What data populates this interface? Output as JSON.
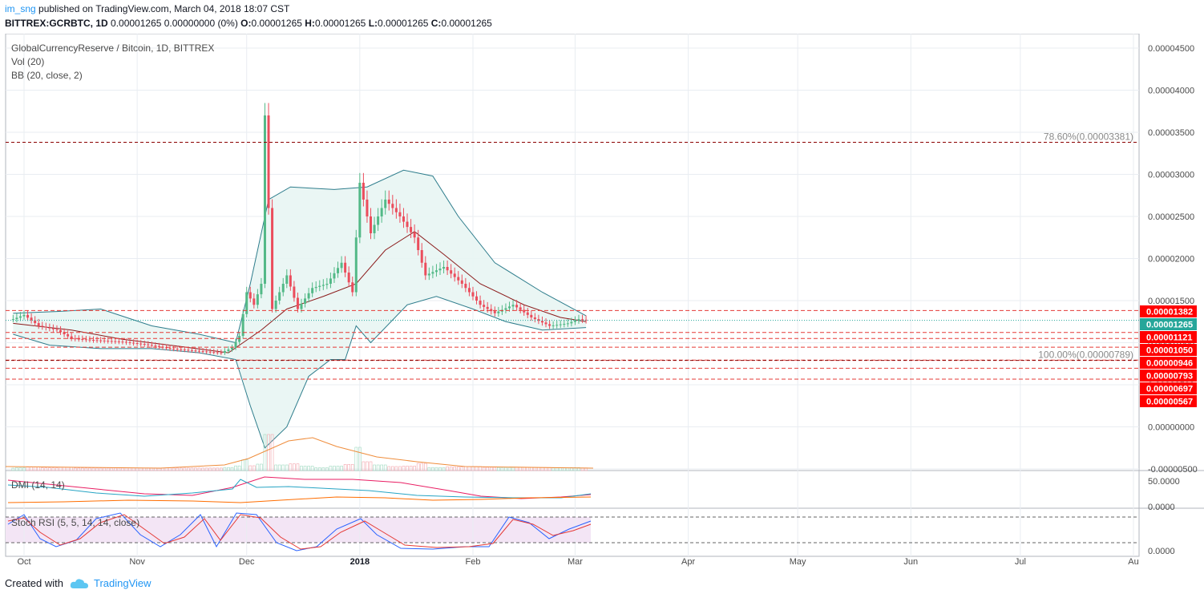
{
  "header": {
    "user": "im_sng",
    "published": " published on TradingView.com, March 04, 2018 18:07 CST",
    "symbol": "BITTREX:GCRBTC, 1D",
    "change": "0.00001265 0.00000000 (0%)",
    "o_label": "O:",
    "o_val": "0.00001265",
    "h_label": "H:",
    "h_val": "0.00001265",
    "l_label": "L:",
    "l_val": "0.00001265",
    "c_label": "C:",
    "c_val": "0.00001265"
  },
  "legend": {
    "main": "GlobalCurrencyReserve / Bitcoin, 1D, BITTREX",
    "vol": "Vol (20)",
    "bb": "BB (20, close, 2)",
    "dmi": "DMI (14, 14)",
    "stoch": "Stoch RSI (5, 5, 14, 14, close)"
  },
  "footer": {
    "created": "Created with",
    "brand": "TradingView"
  },
  "colors": {
    "up": "#53b987",
    "down": "#eb4d5c",
    "bb_band": "#2e7d8c",
    "bb_basis": "#8b1a1a",
    "bb_fill": "#e8f5f3",
    "level_line": "#e53935",
    "level_bg": "#ff0000",
    "current_bg": "#26a69a",
    "grid": "#e9edf2",
    "axis_text": "#4a4a4a",
    "vol_ma": "#ef8d3c",
    "dmi_plus": "#26a4c4",
    "dmi_minus": "#e91e63",
    "adx": "#ff6d00",
    "stoch_k": "#2962ff",
    "stoch_d": "#e53935",
    "stoch_bg": "#f3e5f5"
  },
  "chart_data": {
    "type": "candlestick",
    "y_axis_ticks": [
      "0.00004500",
      "0.00004000",
      "0.00003500",
      "0.00003000",
      "0.00002500",
      "0.00002000",
      "0.00001500",
      "0.00001000",
      "0.00000500",
      "0.00000000",
      "-0.00000500"
    ],
    "y_axis_values": [
      4.5e-05,
      4e-05,
      3.5e-05,
      3e-05,
      2.5e-05,
      2e-05,
      1.5e-05,
      1e-05,
      5e-06,
      0,
      -5e-06
    ],
    "x_axis_labels": [
      "Oct",
      "Nov",
      "Dec",
      "2018",
      "Feb",
      "Mar",
      "Apr",
      "May",
      "Jun",
      "Jul",
      "Au"
    ],
    "x_axis_dates": [
      "2017-10-01",
      "2017-11-01",
      "2017-12-01",
      "2018-01-01",
      "2018-02-01",
      "2018-03-01",
      "2018-04-01",
      "2018-05-01",
      "2018-06-01",
      "2018-07-01",
      "2018-08-01"
    ],
    "fib_levels": [
      {
        "label": "78.60%(0.00003381)",
        "value": 3.381e-05
      },
      {
        "label": "100.00%(0.00000789)",
        "value": 7.89e-06
      }
    ],
    "price_levels": [
      {
        "label": "0.00001382",
        "value": 1.382e-05
      },
      {
        "label": "0.00001121",
        "value": 1.121e-05
      },
      {
        "label": "0.00001050",
        "value": 1.05e-05
      },
      {
        "label": "0.00000946",
        "value": 9.46e-06
      },
      {
        "label": "0.00000793",
        "value": 7.93e-06
      },
      {
        "label": "0.00000697",
        "value": 6.97e-06
      },
      {
        "label": "0.00000567",
        "value": 5.67e-06
      }
    ],
    "current_price": {
      "label": "0.00001265",
      "value": 1.265e-05
    },
    "price_path": [
      [
        "2017-09-28",
        1.28e-05
      ],
      [
        "2017-10-01",
        1.33e-05
      ],
      [
        "2017-10-05",
        1.2e-05
      ],
      [
        "2017-10-10",
        1.15e-05
      ],
      [
        "2017-10-14",
        1.05e-05
      ],
      [
        "2017-10-20",
        1.03e-05
      ],
      [
        "2017-10-28",
        1.01e-05
      ],
      [
        "2017-11-03",
        9.8e-06
      ],
      [
        "2017-11-10",
        9.3e-06
      ],
      [
        "2017-11-18",
        9e-06
      ],
      [
        "2017-11-24",
        8.8e-06
      ],
      [
        "2017-11-27",
        9.4e-06
      ],
      [
        "2017-11-29",
        1.08e-05
      ],
      [
        "2017-12-01",
        1.6e-05
      ],
      [
        "2017-12-03",
        1.45e-05
      ],
      [
        "2017-12-05",
        1.7e-05
      ],
      [
        "2017-12-06",
        3.7e-05
      ],
      [
        "2017-12-07",
        2.6e-05
      ],
      [
        "2017-12-08",
        1.4e-05
      ],
      [
        "2017-12-12",
        1.8e-05
      ],
      [
        "2017-12-15",
        1.4e-05
      ],
      [
        "2017-12-19",
        1.65e-05
      ],
      [
        "2017-12-23",
        1.7e-05
      ],
      [
        "2017-12-27",
        1.95e-05
      ],
      [
        "2017-12-30",
        1.6e-05
      ],
      [
        "2018-01-01",
        2.9e-05
      ],
      [
        "2018-01-04",
        2.3e-05
      ],
      [
        "2018-01-08",
        2.7e-05
      ],
      [
        "2018-01-12",
        2.5e-05
      ],
      [
        "2018-01-16",
        2.25e-05
      ],
      [
        "2018-01-19",
        1.8e-05
      ],
      [
        "2018-01-24",
        1.9e-05
      ],
      [
        "2018-01-29",
        1.7e-05
      ],
      [
        "2018-02-03",
        1.45e-05
      ],
      [
        "2018-02-07",
        1.35e-05
      ],
      [
        "2018-02-12",
        1.45e-05
      ],
      [
        "2018-02-17",
        1.3e-05
      ],
      [
        "2018-02-22",
        1.2e-05
      ],
      [
        "2018-02-27",
        1.23e-05
      ],
      [
        "2018-03-02",
        1.28e-05
      ],
      [
        "2018-03-04",
        1.265e-05
      ]
    ],
    "bb_upper_path": [
      [
        "2017-09-28",
        1.35e-05
      ],
      [
        "2017-10-10",
        1.37e-05
      ],
      [
        "2017-10-22",
        1.4e-05
      ],
      [
        "2017-11-05",
        1.2e-05
      ],
      [
        "2017-11-18",
        1.1e-05
      ],
      [
        "2017-11-28",
        1e-05
      ],
      [
        "2017-12-02",
        1.7e-05
      ],
      [
        "2017-12-07",
        2.7e-05
      ],
      [
        "2017-12-13",
        2.85e-05
      ],
      [
        "2017-12-25",
        2.82e-05
      ],
      [
        "2018-01-03",
        2.85e-05
      ],
      [
        "2018-01-13",
        3.05e-05
      ],
      [
        "2018-01-21",
        2.98e-05
      ],
      [
        "2018-01-28",
        2.5e-05
      ],
      [
        "2018-02-07",
        1.95e-05
      ],
      [
        "2018-02-20",
        1.6e-05
      ],
      [
        "2018-03-04",
        1.32e-05
      ]
    ],
    "bb_lower_path": [
      [
        "2017-09-28",
        1.1e-05
      ],
      [
        "2017-10-08",
        9.7e-06
      ],
      [
        "2017-10-22",
        9.3e-06
      ],
      [
        "2017-11-05",
        9.3e-06
      ],
      [
        "2017-11-18",
        8.8e-06
      ],
      [
        "2017-11-28",
        8e-06
      ],
      [
        "2017-12-02",
        2.5e-06
      ],
      [
        "2017-12-06",
        -2.5e-06
      ],
      [
        "2017-12-12",
        0.0
      ],
      [
        "2017-12-18",
        6e-06
      ],
      [
        "2017-12-24",
        8e-06
      ],
      [
        "2017-12-28",
        8e-06
      ],
      [
        "2017-12-31",
        1.2e-05
      ],
      [
        "2018-01-04",
        1e-05
      ],
      [
        "2018-01-14",
        1.45e-05
      ],
      [
        "2018-01-22",
        1.55e-05
      ],
      [
        "2018-02-01",
        1.4e-05
      ],
      [
        "2018-02-10",
        1.25e-05
      ],
      [
        "2018-02-20",
        1.15e-05
      ],
      [
        "2018-03-04",
        1.18e-05
      ]
    ],
    "bb_basis_path": [
      [
        "2017-09-28",
        1.23e-05
      ],
      [
        "2017-10-14",
        1.15e-05
      ],
      [
        "2017-10-28",
        1.04e-05
      ],
      [
        "2017-11-12",
        9.6e-06
      ],
      [
        "2017-11-26",
        8.8e-06
      ],
      [
        "2017-12-05",
        1.15e-05
      ],
      [
        "2017-12-12",
        1.4e-05
      ],
      [
        "2017-12-22",
        1.55e-05
      ],
      [
        "2017-12-31",
        1.7e-05
      ],
      [
        "2018-01-08",
        2.1e-05
      ],
      [
        "2018-01-16",
        2.32e-05
      ],
      [
        "2018-01-24",
        2.05e-05
      ],
      [
        "2018-02-03",
        1.7e-05
      ],
      [
        "2018-02-15",
        1.45e-05
      ],
      [
        "2018-02-25",
        1.3e-05
      ],
      [
        "2018-03-04",
        1.25e-05
      ]
    ],
    "indicators": {
      "dmi_axis": [
        "50.0000",
        "0.0000"
      ],
      "stoch_axis": [
        "0.0000"
      ]
    }
  }
}
